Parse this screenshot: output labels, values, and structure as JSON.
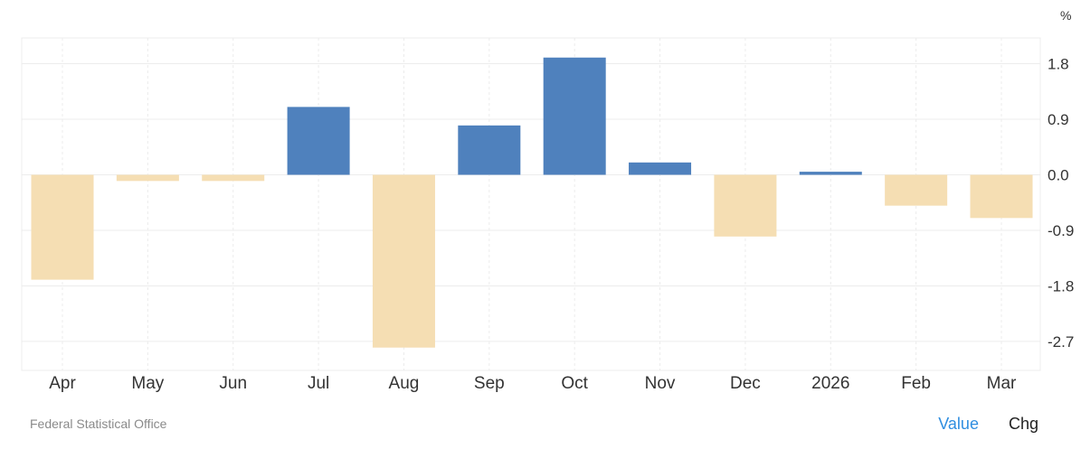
{
  "chart_data": {
    "type": "bar",
    "categories": [
      "Apr",
      "May",
      "Jun",
      "Jul",
      "Aug",
      "Sep",
      "Oct",
      "Nov",
      "Dec",
      "2026",
      "Feb",
      "Mar"
    ],
    "values": [
      -1.7,
      -0.1,
      -0.1,
      1.1,
      -2.8,
      0.8,
      1.9,
      0.2,
      -1.0,
      0.05,
      -0.5,
      -0.7
    ],
    "unit_label": "%",
    "y_ticks": [
      "1.8",
      "0.9",
      "0.0",
      "-0.9",
      "-1.8",
      "-2.7"
    ],
    "ylim": [
      -3.2,
      2.2
    ],
    "grid": true,
    "axis_side": "right",
    "colors": {
      "positive": "#4f81bd",
      "negative": "#f5deb3",
      "grid": "#ececec",
      "axis_text": "#333333"
    }
  },
  "footer": {
    "source": "Federal Statistical Office",
    "tab_value": "Value",
    "tab_chg": "Chg"
  }
}
